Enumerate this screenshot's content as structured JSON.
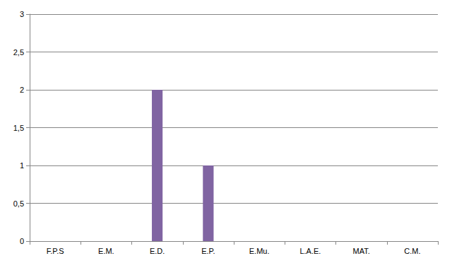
{
  "chart_data": {
    "type": "bar",
    "categories": [
      "F.P.S",
      "E.M.",
      "E.D.",
      "E.P.",
      "E.Mu.",
      "L.A.E.",
      "MAT.",
      "C.M."
    ],
    "values": [
      0,
      0,
      2,
      1,
      0,
      0,
      0,
      0
    ],
    "color": "#8064a2",
    "ylim": [
      0,
      3
    ],
    "yticks": [
      0,
      {
        "value": 0.5,
        "label": "0,5"
      },
      1,
      {
        "value": 1.5,
        "label": "1,5"
      },
      2,
      {
        "value": 2.5,
        "label": "2,5"
      },
      3
    ],
    "grid": true
  }
}
